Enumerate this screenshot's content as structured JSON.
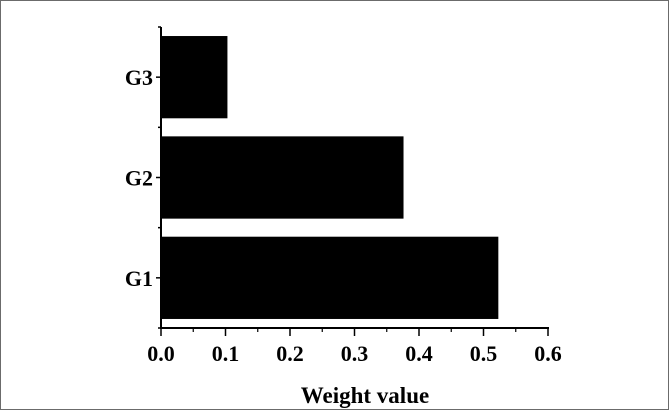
{
  "chart_data": {
    "type": "bar",
    "orientation": "horizontal",
    "categories": [
      "G1",
      "G2",
      "G3"
    ],
    "values": [
      0.523,
      0.376,
      0.103
    ],
    "title": "",
    "xlabel": "Weight value",
    "ylabel": "",
    "xlim": [
      0.0,
      0.6
    ],
    "xticks": [
      "0.0",
      "0.1",
      "0.2",
      "0.3",
      "0.4",
      "0.5",
      "0.6"
    ],
    "grid": false,
    "bar_color": "#000000"
  }
}
